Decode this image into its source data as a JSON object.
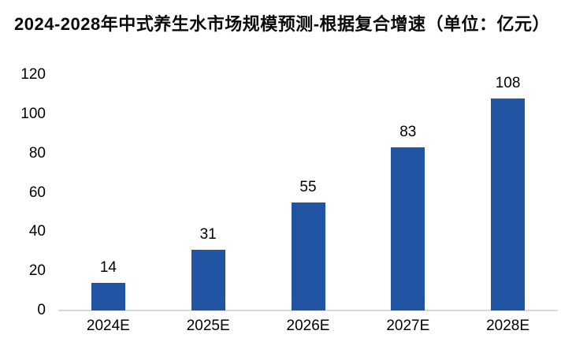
{
  "title": "2024-2028年中式养生水市场规模预测-根据复合增速（单位：亿元）",
  "chart_data": {
    "type": "bar",
    "title": "2024-2028年中式养生水市场规模预测-根据复合增速（单位：亿元）",
    "categories": [
      "2024E",
      "2025E",
      "2026E",
      "2027E",
      "2028E"
    ],
    "values": [
      14,
      31,
      55,
      83,
      108
    ],
    "data_labels": [
      14,
      31,
      55,
      83,
      108
    ],
    "xlabel": "",
    "ylabel": "",
    "ylim": [
      0,
      120
    ],
    "yticks": [
      0,
      20,
      40,
      60,
      80,
      100,
      120
    ],
    "grid": false,
    "legend": false,
    "bar_color": "#2155A4",
    "axis_line_color": "#D9D9D9",
    "text_color": "#000000"
  }
}
